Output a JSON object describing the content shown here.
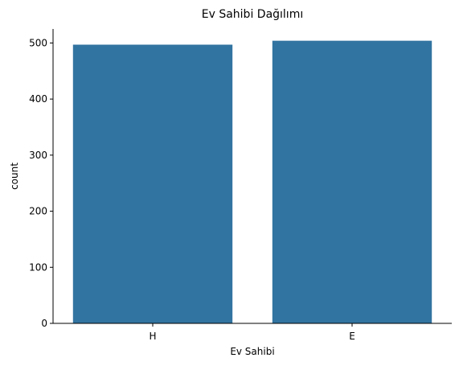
{
  "chart_data": {
    "type": "bar",
    "title": "Ev Sahibi Dağılımı",
    "xlabel": "Ev Sahibi",
    "ylabel": "count",
    "categories": [
      "H",
      "E"
    ],
    "values": [
      497,
      504
    ],
    "ylim": [
      0,
      525
    ],
    "yticks": [
      0,
      100,
      200,
      300,
      400,
      500
    ],
    "grid": false,
    "colors": {
      "bar": "#3274a1",
      "axis": "#000000"
    }
  }
}
